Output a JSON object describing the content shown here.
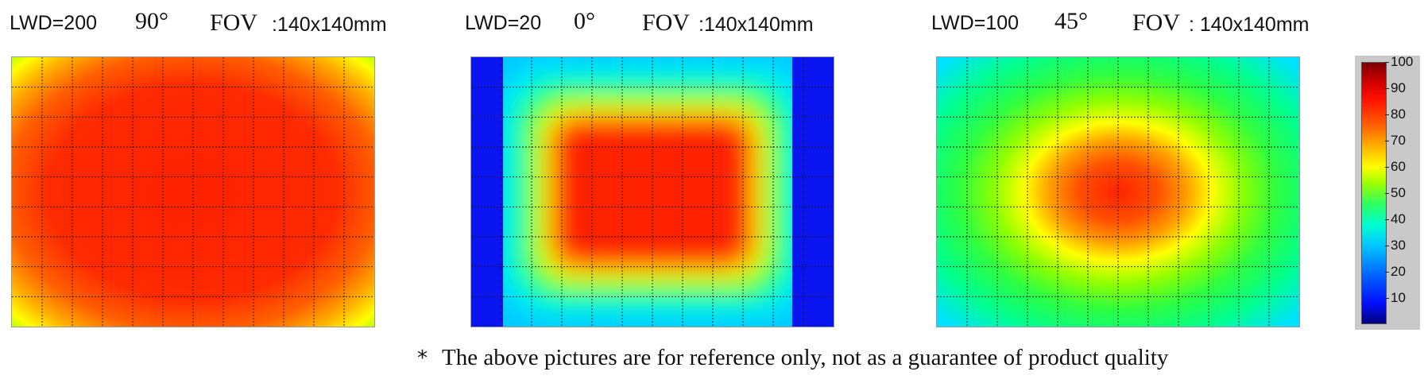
{
  "panels": [
    {
      "lwd": "LWD=200",
      "angle": "90°",
      "fov_label": "FOV",
      "fov_value": ":140x140mm",
      "pattern": "center-bright"
    },
    {
      "lwd": "LWD=20",
      "angle": "0°",
      "fov_label": "FOV",
      "fov_value": ":140x140mm",
      "pattern": "square-ring"
    },
    {
      "lwd": "LWD=100",
      "angle": "45°",
      "fov_label": "FOV",
      "fov_value": ": 140x140mm",
      "pattern": "center-peak"
    }
  ],
  "colorbar": {
    "ticks": [
      "10",
      "20",
      "30",
      "40",
      "50",
      "60",
      "70",
      "80",
      "90",
      "100"
    ],
    "colors": [
      "#000080",
      "#0010ff",
      "#0070ff",
      "#00c8ff",
      "#00ffd0",
      "#30ff60",
      "#a0ff00",
      "#ffff00",
      "#ffb000",
      "#ff6000",
      "#ff1000",
      "#cc0000",
      "#7a0000"
    ]
  },
  "footnote": {
    "star": "*",
    "text": "The above pictures are for reference only, not as a guarantee of product quality"
  },
  "chart_data": [
    {
      "type": "heatmap",
      "title": "LWD=200 90° FOV :140x140mm",
      "value_range": [
        0,
        100
      ],
      "description_values": {
        "center": 88,
        "corners": 62
      },
      "grid": true
    },
    {
      "type": "heatmap",
      "title": "LWD=20 0° FOV :140x140mm",
      "value_range": [
        0,
        100
      ],
      "description_values": {
        "center": 88,
        "ring": 48,
        "outer": 12
      },
      "grid": true
    },
    {
      "type": "heatmap",
      "title": "LWD=100 45° FOV : 140x140mm",
      "value_range": [
        0,
        100
      ],
      "description_values": {
        "center": 85,
        "mid": 50,
        "corners": 35
      },
      "grid": true
    }
  ]
}
